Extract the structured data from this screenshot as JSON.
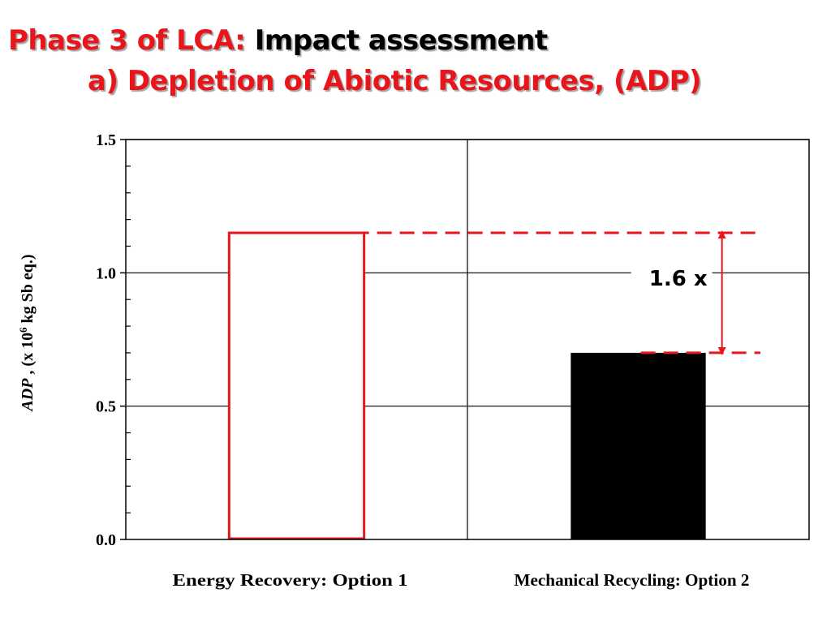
{
  "header": {
    "title_prefix": "Phase 3 of LCA:",
    "title_main": "Impact assessment",
    "subtitle": "a) Depletion of Abiotic Resources, (ADP)"
  },
  "colors": {
    "title_red": "#e8151b",
    "accent_red": "#e8151b",
    "bar_option2": "#000000"
  },
  "chart_data": {
    "type": "bar",
    "categories": [
      "Energy Recovery: Option 1",
      "Mechanical Recycling: Option 2"
    ],
    "values": [
      1.15,
      0.7
    ],
    "bar_styles": [
      "outline-red",
      "filled-black"
    ],
    "ylabel": {
      "var": "ADP",
      "pre": " , (x 10",
      "sup": "6",
      "post": " kg Sb eq.)"
    },
    "ylim": [
      0,
      1.5
    ],
    "yticks": [
      "0.0",
      "0.5",
      "1.0",
      "1.5"
    ],
    "ytick_values": [
      0.0,
      0.5,
      1.0,
      1.5
    ],
    "minor_tick_step": 0.1,
    "grid": true,
    "annotation": {
      "text": "1.6 x",
      "from_value": 1.15,
      "to_value": 0.7
    }
  }
}
